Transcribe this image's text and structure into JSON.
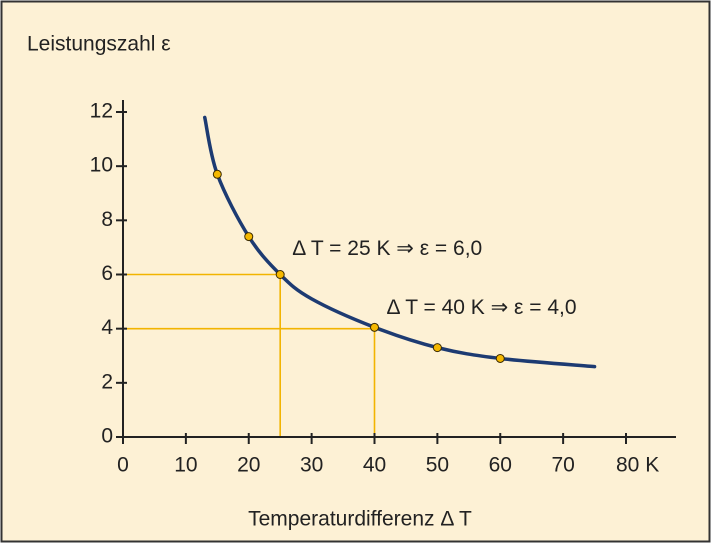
{
  "chart_data": {
    "type": "line",
    "title": "Leistungszahl ε",
    "x_label": "Temperaturdifferenz  Δ T",
    "xlim": [
      0,
      80
    ],
    "ylim": [
      0,
      12
    ],
    "xticks": [
      0,
      10,
      20,
      30,
      40,
      50,
      60,
      70,
      {
        "value": 80,
        "label": "80 K"
      }
    ],
    "yticks": [
      0,
      2,
      4,
      6,
      8,
      10,
      12
    ],
    "series": [
      {
        "color": "#1d3b72",
        "x": [
          13,
          15,
          20,
          25,
          30,
          40,
          50,
          60,
          75
        ],
        "values": [
          11.8,
          9.7,
          7.4,
          6.0,
          5.1,
          4.05,
          3.3,
          2.9,
          2.6
        ]
      },
      {
        "color": "#f5b800",
        "markers": true,
        "x": [
          15,
          20,
          25,
          40,
          50,
          60
        ],
        "values": [
          9.7,
          7.4,
          6.0,
          4.05,
          3.3,
          2.9
        ]
      }
    ],
    "annotations": [
      {
        "text": "Δ T = 25 K ⇒ ε = 6,0",
        "x": 25,
        "y": 6.0
      },
      {
        "text": "Δ T = 40 K ⇒ ε = 4,0",
        "x": 40,
        "y": 4.0
      }
    ],
    "guide_color": "#f2b400"
  }
}
